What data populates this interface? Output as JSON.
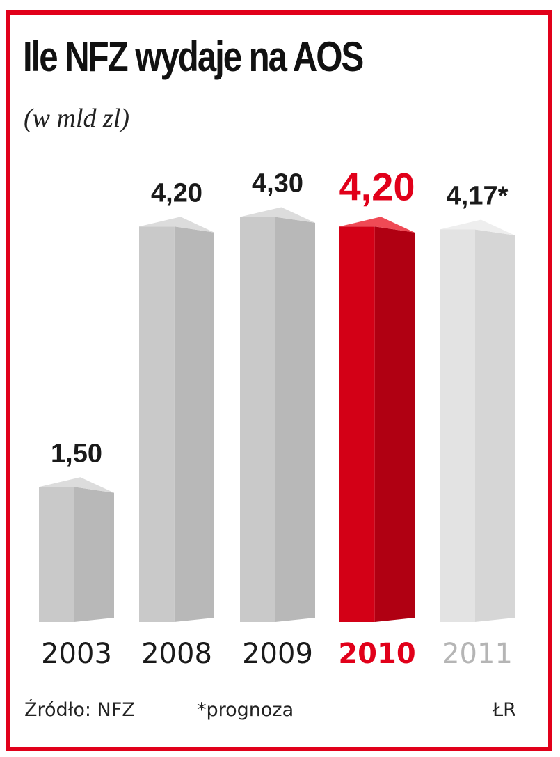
{
  "chart_data": {
    "type": "bar",
    "title": "Ile NFZ wydaje na AOS",
    "subtitle": "(w mld zl)",
    "categories": [
      "2003",
      "2008",
      "2009",
      "2010",
      "2011"
    ],
    "values": [
      1.5,
      4.2,
      4.3,
      4.2,
      4.17
    ],
    "value_labels": [
      "1,50",
      "4,20",
      "4,30",
      "4,20",
      "4,17*"
    ],
    "highlight_index": 3,
    "ylim": [
      0,
      4.5
    ],
    "grid": false,
    "legend": "none"
  },
  "colors": {
    "frame": "#e1001a",
    "bar_front": "#c9c9c9",
    "bar_side": "#b8b8b8",
    "bar_top": "#dcdcdc",
    "highlight_front": "#d30016",
    "highlight_side": "#b00012",
    "highlight_top": "#ef4a55",
    "forecast_front": "#e3e3e3",
    "forecast_side": "#d6d6d6",
    "forecast_top": "#eeeeee",
    "text": "#1a1a1a",
    "forecast_text": "#b5b5b5"
  },
  "footer": {
    "source": "Źródło: NFZ",
    "note": "*prognoza",
    "credit": "ŁR"
  }
}
